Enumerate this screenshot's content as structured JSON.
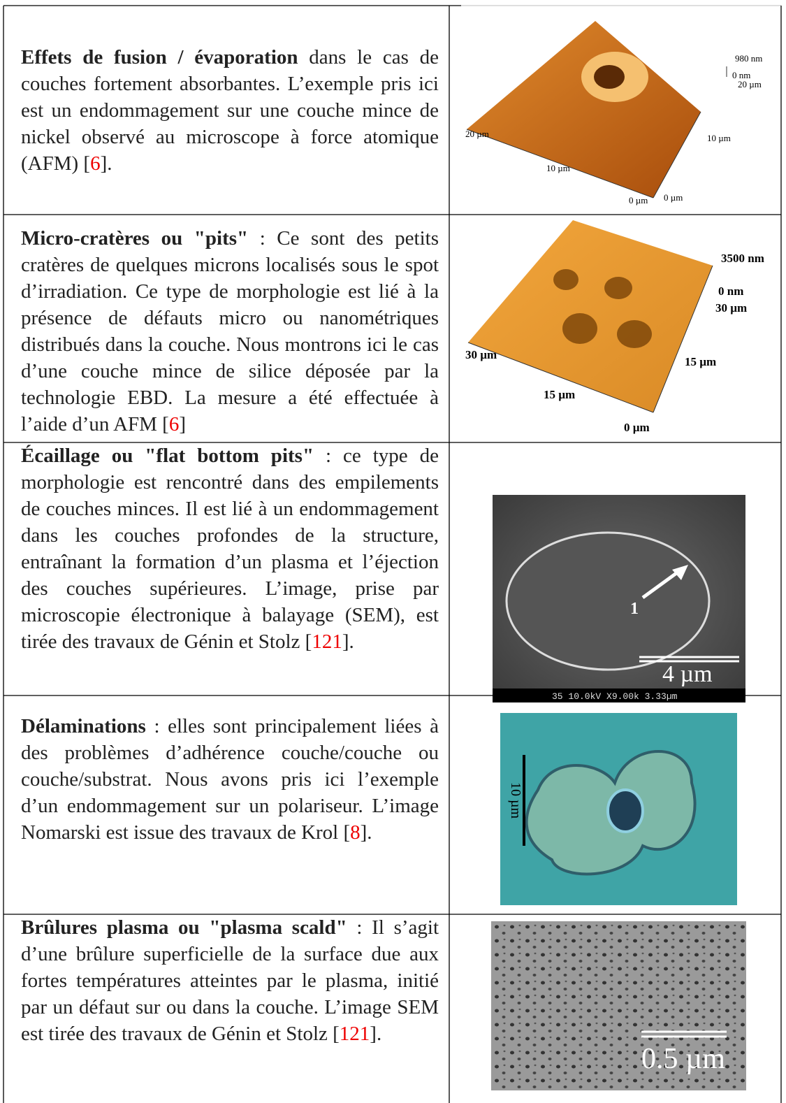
{
  "rows": [
    {
      "lead": "Effets de fusion / évaporation",
      "body": " dans le cas de couches fortement absorbantes. L’exemple pris ici est un endommagement sur une couche mince de nickel observé au microscope à force atomique (AFM) [",
      "ref": "6",
      "tail": "].",
      "image_labels": [
        "980 nm",
        "0 nm",
        "20 µm",
        "20 µm",
        "10 µm",
        "10 µm",
        "0 µm",
        "0 µm"
      ]
    },
    {
      "lead": "Micro-cratères ou \"pits\"",
      "body": " : Ce sont des petits cratères de quelques microns localisés sous le spot d’irradiation. Ce type de morphologie est lié à la présence de défauts micro ou nanométriques distribués dans la couche. Nous montrons ici le cas d’une couche mince de silice déposée par la technologie EBD. La mesure a été effectuée à l’aide d’un AFM [",
      "ref": "6",
      "tail": "]",
      "image_labels": [
        "3500 nm",
        "0 nm",
        "30 µm",
        "30 µm",
        "15 µm",
        "15 µm",
        "0 µm"
      ]
    },
    {
      "lead": "Écaillage ou \"flat bottom pits\"",
      "body": " : ce type de morphologie est rencontré dans des empilements de couches minces. Il est lié à un endommagement dans les couches profondes de la structure, entraînant la formation d’un plasma et l’éjection des couches supérieures. L’image, prise par microscopie électronique à balayage (SEM), est tirée des travaux de Génin et Stolz [",
      "ref": "121",
      "tail": "].",
      "image_labels": [
        "1",
        "4 µm",
        "35 10.0kV X9.00k 3.33µm"
      ]
    },
    {
      "lead": "Délaminations",
      "body": " : elles sont principalement liées à des problèmes d’adhérence couche/couche ou couche/substrat. Nous avons pris ici l’exemple d’un endommagement sur un polariseur. L’image Nomarski est issue des travaux de Krol [",
      "ref": "8",
      "tail": "].",
      "image_labels": [
        "10 µm"
      ]
    },
    {
      "lead": "Brûlures plasma ou \"plasma scald\"",
      "body": " : Il s’agit d’une brûlure superficielle de la surface due aux fortes températures atteintes par le plasma, initié par un défaut sur ou dans la couche. L’image SEM est tirée des travaux de Génin et Stolz [",
      "ref": "121",
      "tail": "].",
      "image_labels": [
        "0.5 µm"
      ]
    }
  ]
}
